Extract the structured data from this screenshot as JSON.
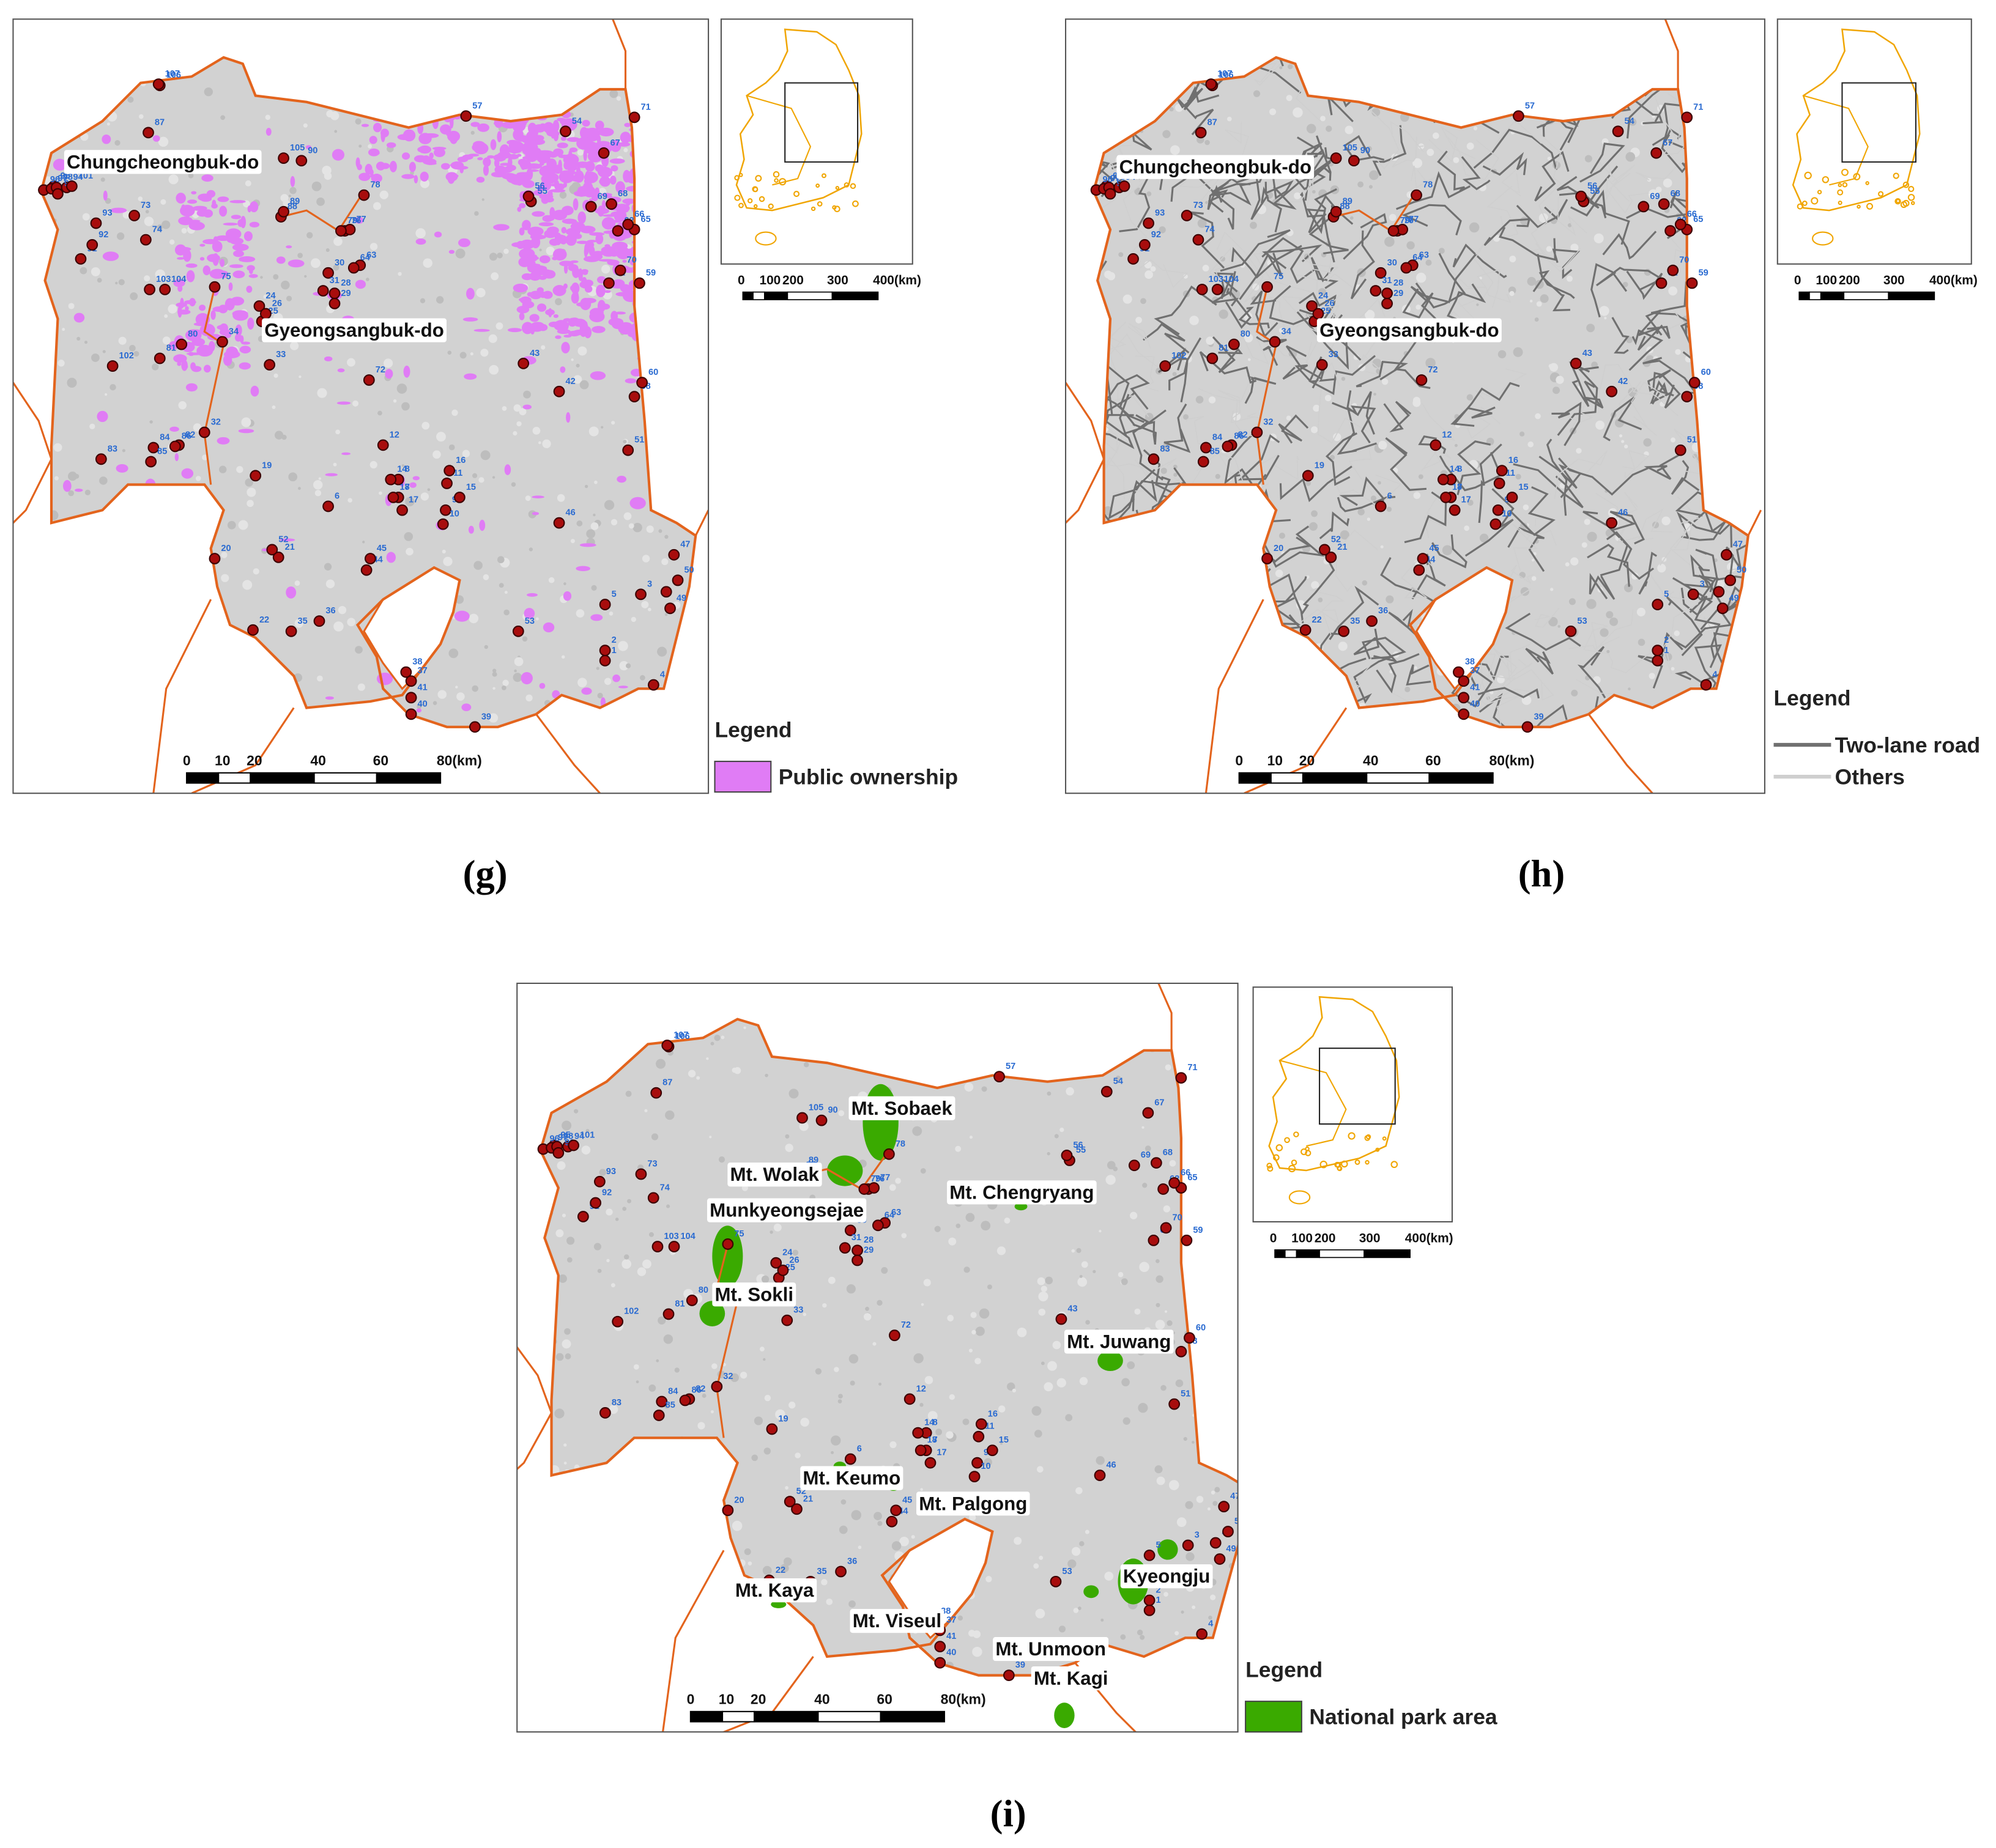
{
  "site_labels": [
    "1",
    "2",
    "3",
    "4",
    "5",
    "6",
    "7",
    "8",
    "9",
    "10",
    "11",
    "12",
    "14",
    "15",
    "16",
    "17",
    "18",
    "19",
    "20",
    "21",
    "22",
    "24",
    "25",
    "26",
    "28",
    "29",
    "30",
    "31",
    "32",
    "33",
    "34",
    "35",
    "36",
    "37",
    "38",
    "39",
    "40",
    "41",
    "42",
    "43",
    "44",
    "45",
    "46",
    "47",
    "48",
    "49",
    "50",
    "51",
    "52",
    "53",
    "54",
    "55",
    "56",
    "57",
    "58",
    "59",
    "60",
    "61",
    "62",
    "63",
    "64",
    "65",
    "66",
    "67",
    "68",
    "69",
    "70",
    "71",
    "72",
    "73",
    "74",
    "75",
    "76",
    "77",
    "78",
    "79",
    "80",
    "81",
    "82",
    "83",
    "84",
    "85",
    "86",
    "87",
    "88",
    "89",
    "90",
    "91",
    "92",
    "93",
    "94",
    "95",
    "96",
    "97",
    "98",
    "99",
    "101",
    "102",
    "103",
    "104",
    "105",
    "106",
    "107"
  ],
  "scale_labels": [
    "0",
    "10",
    "20",
    "40",
    "60",
    "80(km)"
  ],
  "inset_scale_labels": [
    "0",
    "100",
    "200",
    "300",
    "400(km)"
  ],
  "panels": [
    {
      "caption": "(g)",
      "region_labels": [
        "Chungcheongbuk-do",
        "Gyeongsangbuk-do"
      ],
      "legend": {
        "title": "Legend",
        "items": [
          {
            "label": "Public ownership",
            "color": "#e07cf5"
          }
        ]
      }
    },
    {
      "caption": "(h)",
      "region_labels": [
        "Chungcheongbuk-do",
        "Gyeongsangbuk-do"
      ],
      "legend": {
        "title": "Legend",
        "items": [
          {
            "label": "Two-lane road",
            "color": "#707070"
          },
          {
            "label": "Others",
            "color": "#cfcfcf"
          }
        ]
      }
    },
    {
      "caption": "(i)",
      "region_labels": [
        "Mt. Sobaek",
        "Mt. Wolak",
        "Munkyeongsejae",
        "Mt. Chengryang",
        "Mt. Sokli",
        "Mt. Juwang",
        "Mt. Keumo",
        "Mt. Palgong",
        "Mt. Kaya",
        "Mt. Viseul",
        "Mt. Unmoon",
        "Mt. Kagi",
        "Kyeongju"
      ],
      "legend": {
        "title": "Legend",
        "items": [
          {
            "label": "National park area",
            "color": "#3aaa00"
          }
        ]
      }
    }
  ]
}
